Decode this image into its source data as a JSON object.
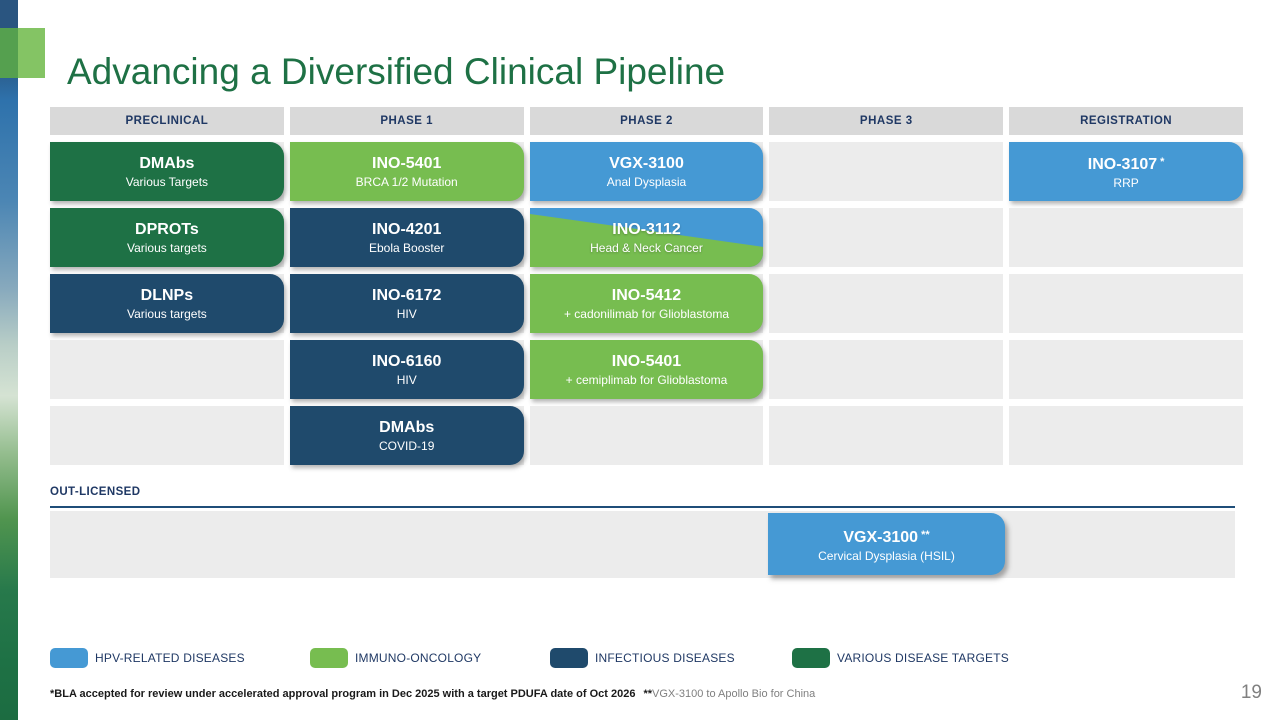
{
  "slide": {
    "title": "Advancing a Diversified Clinical Pipeline",
    "page_number": "19"
  },
  "grid": {
    "headers": [
      "PRECLINICAL",
      "PHASE 1",
      "PHASE 2",
      "PHASE 3",
      "REGISTRATION"
    ],
    "rows": [
      {
        "cells": {
          "preclinical": {
            "name": "DMAbs",
            "sub": "Various Targets",
            "category": "various-disease-targets"
          },
          "phase1": {
            "name": "INO-5401",
            "sub": "BRCA 1/2 Mutation",
            "category": "immuno-oncology"
          },
          "phase2": {
            "name": "VGX-3100",
            "sub": "Anal Dysplasia",
            "category": "hpv-related-diseases"
          },
          "registration": {
            "name": "INO-3107",
            "marker": "*",
            "sub": "RRP",
            "category": "hpv-related-diseases"
          }
        }
      },
      {
        "cells": {
          "preclinical": {
            "name": "DPROTs",
            "sub": "Various targets",
            "category": "various-disease-targets"
          },
          "phase1": {
            "name": "INO-4201",
            "sub": "Ebola Booster",
            "category": "infectious-diseases"
          },
          "phase2": {
            "name": "INO-3112",
            "sub": "Head & Neck Cancer",
            "category": "immuno-oncology / hpv-related-diseases"
          }
        }
      },
      {
        "cells": {
          "preclinical": {
            "name": "DLNPs",
            "sub": "Various targets",
            "category": "infectious-diseases"
          },
          "phase1": {
            "name": "INO-6172",
            "sub": "HIV",
            "category": "infectious-diseases"
          },
          "phase2": {
            "name": "INO-5412",
            "sub": "+ cadonilimab for Glioblastoma",
            "category": "immuno-oncology"
          }
        }
      },
      {
        "cells": {
          "phase1": {
            "name": "INO-6160",
            "sub": "HIV",
            "category": "infectious-diseases"
          },
          "phase2": {
            "name": "INO-5401",
            "sub": "+ cemiplimab for Glioblastoma",
            "category": "immuno-oncology"
          }
        }
      },
      {
        "cells": {
          "phase1": {
            "name": "DMAbs",
            "sub": "COVID-19",
            "category": "infectious-diseases"
          }
        }
      }
    ]
  },
  "out_licensed": {
    "label": "OUT-LICENSED",
    "box": {
      "name": "VGX-3100",
      "marker": "**",
      "sub": "Cervical Dysplasia (HSIL)",
      "category": "hpv-related-diseases"
    }
  },
  "legend": {
    "items": [
      {
        "label": "HPV-RELATED DISEASES",
        "color": "#4599d4"
      },
      {
        "label": "IMMUNO-ONCOLOGY",
        "color": "#77bd50"
      },
      {
        "label": "INFECTIOUS DISEASES",
        "color": "#1f4a6c"
      },
      {
        "label": "VARIOUS DISEASE TARGETS",
        "color": "#1e7145"
      }
    ]
  },
  "footnote": {
    "primary": "*BLA accepted for review under accelerated approval program in Dec 2025 with a target PDUFA date of Oct 2026",
    "secondary_marker": "**",
    "secondary": "VGX-3100 to Apollo Bio for China"
  },
  "colors": {
    "title_green": "#1e7145",
    "header_text_navy": "#1f3864",
    "header_bg": "#d9d9d9",
    "empty_cell_gray": "#ececec",
    "divider_navy": "#1f4e79",
    "footnote_gray": "#7f7f7f"
  }
}
